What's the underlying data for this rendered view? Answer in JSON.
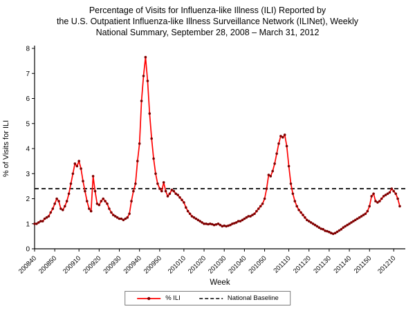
{
  "chart_data": {
    "type": "line",
    "title": "Percentage of Visits for Influenza-like Illness (ILI) Reported by the U.S. Outpatient Influenza-like Illness Surveillance Network (ILINet), Weekly National Summary, September 28, 2008 – March 31, 2012",
    "title_lines": [
      "Percentage of Visits for Influenza-like Illness (ILI) Reported by",
      "the U.S. Outpatient Influenza-like Illness Surveillance Network (ILINet), Weekly",
      "National Summary, September 28, 2008 – March 31, 2012"
    ],
    "xlabel": "Week",
    "ylabel": "% of Visits for ILI",
    "ylim": [
      0,
      8
    ],
    "yticks": [
      0,
      1,
      2,
      3,
      4,
      5,
      6,
      7,
      8
    ],
    "xticks": [
      "200840",
      "200850",
      "200910",
      "200920",
      "200930",
      "200940",
      "200950",
      "201010",
      "201020",
      "201030",
      "201040",
      "201050",
      "201110",
      "201120",
      "201130",
      "201140",
      "201150",
      "201210"
    ],
    "grid": false,
    "legend_position": "bottom",
    "baseline": {
      "name": "National Baseline",
      "value": 2.4,
      "color": "#000000",
      "style": "dashed"
    },
    "x": [
      "200840",
      "200841",
      "200842",
      "200843",
      "200844",
      "200845",
      "200846",
      "200847",
      "200848",
      "200849",
      "200850",
      "200851",
      "200852",
      "200901",
      "200902",
      "200903",
      "200904",
      "200905",
      "200906",
      "200907",
      "200908",
      "200909",
      "200910",
      "200911",
      "200912",
      "200913",
      "200914",
      "200915",
      "200916",
      "200917",
      "200918",
      "200919",
      "200920",
      "200921",
      "200922",
      "200923",
      "200924",
      "200925",
      "200926",
      "200927",
      "200928",
      "200929",
      "200930",
      "200931",
      "200932",
      "200933",
      "200934",
      "200935",
      "200936",
      "200937",
      "200938",
      "200939",
      "200940",
      "200941",
      "200942",
      "200943",
      "200944",
      "200945",
      "200946",
      "200947",
      "200948",
      "200949",
      "200950",
      "200951",
      "200952",
      "201001",
      "201002",
      "201003",
      "201004",
      "201005",
      "201006",
      "201007",
      "201008",
      "201009",
      "201010",
      "201011",
      "201012",
      "201013",
      "201014",
      "201015",
      "201016",
      "201017",
      "201018",
      "201019",
      "201020",
      "201021",
      "201022",
      "201023",
      "201024",
      "201025",
      "201026",
      "201027",
      "201028",
      "201029",
      "201030",
      "201031",
      "201032",
      "201033",
      "201034",
      "201035",
      "201036",
      "201037",
      "201038",
      "201039",
      "201040",
      "201041",
      "201042",
      "201043",
      "201044",
      "201045",
      "201046",
      "201047",
      "201048",
      "201049",
      "201050",
      "201051",
      "201052",
      "201101",
      "201102",
      "201103",
      "201104",
      "201105",
      "201106",
      "201107",
      "201108",
      "201109",
      "201110",
      "201111",
      "201112",
      "201113",
      "201114",
      "201115",
      "201116",
      "201117",
      "201118",
      "201119",
      "201120",
      "201121",
      "201122",
      "201123",
      "201124",
      "201125",
      "201126",
      "201127",
      "201128",
      "201129",
      "201130",
      "201131",
      "201132",
      "201133",
      "201134",
      "201135",
      "201136",
      "201137",
      "201138",
      "201139",
      "201140",
      "201141",
      "201142",
      "201143",
      "201144",
      "201145",
      "201146",
      "201147",
      "201148",
      "201149",
      "201150",
      "201151",
      "201152",
      "201201",
      "201202",
      "201203",
      "201204",
      "201205",
      "201206",
      "201207",
      "201208",
      "201209",
      "201210",
      "201211",
      "201212",
      "201213"
    ],
    "series": [
      {
        "name": "% ILI",
        "color": "#ff0000",
        "marker_color": "#7f0000",
        "values": [
          1.0,
          1.0,
          1.05,
          1.1,
          1.1,
          1.2,
          1.25,
          1.3,
          1.45,
          1.6,
          1.8,
          2.0,
          1.9,
          1.6,
          1.55,
          1.7,
          1.9,
          2.2,
          2.6,
          3.0,
          3.4,
          3.3,
          3.5,
          3.2,
          2.7,
          2.3,
          1.9,
          1.6,
          1.5,
          2.9,
          2.3,
          1.8,
          1.75,
          1.9,
          2.0,
          1.9,
          1.8,
          1.6,
          1.45,
          1.35,
          1.3,
          1.25,
          1.2,
          1.2,
          1.15,
          1.2,
          1.25,
          1.4,
          1.9,
          2.3,
          2.6,
          3.5,
          4.2,
          5.9,
          6.9,
          7.65,
          6.7,
          5.4,
          4.4,
          3.6,
          3.0,
          2.6,
          2.4,
          2.3,
          2.65,
          2.3,
          2.1,
          2.2,
          2.35,
          2.3,
          2.2,
          2.15,
          2.05,
          1.95,
          1.85,
          1.65,
          1.5,
          1.4,
          1.3,
          1.25,
          1.2,
          1.15,
          1.1,
          1.05,
          1.0,
          1.0,
          0.98,
          1.0,
          0.98,
          0.95,
          0.97,
          1.0,
          0.95,
          0.9,
          0.92,
          0.9,
          0.92,
          0.95,
          1.0,
          1.02,
          1.05,
          1.1,
          1.1,
          1.15,
          1.2,
          1.25,
          1.3,
          1.3,
          1.35,
          1.4,
          1.5,
          1.6,
          1.7,
          1.8,
          2.0,
          2.4,
          2.95,
          2.9,
          3.1,
          3.4,
          3.8,
          4.2,
          4.5,
          4.45,
          4.55,
          4.1,
          3.3,
          2.6,
          2.2,
          1.9,
          1.7,
          1.55,
          1.45,
          1.35,
          1.25,
          1.15,
          1.1,
          1.05,
          1.0,
          0.95,
          0.9,
          0.85,
          0.8,
          0.78,
          0.72,
          0.7,
          0.67,
          0.63,
          0.6,
          0.63,
          0.68,
          0.73,
          0.78,
          0.85,
          0.9,
          0.95,
          1.0,
          1.05,
          1.1,
          1.15,
          1.2,
          1.25,
          1.3,
          1.35,
          1.4,
          1.5,
          1.7,
          2.1,
          2.2,
          1.9,
          1.85,
          1.9,
          2.0,
          2.1,
          2.15,
          2.2,
          2.25,
          2.4,
          2.3,
          2.2,
          2.0,
          1.7
        ]
      }
    ]
  }
}
